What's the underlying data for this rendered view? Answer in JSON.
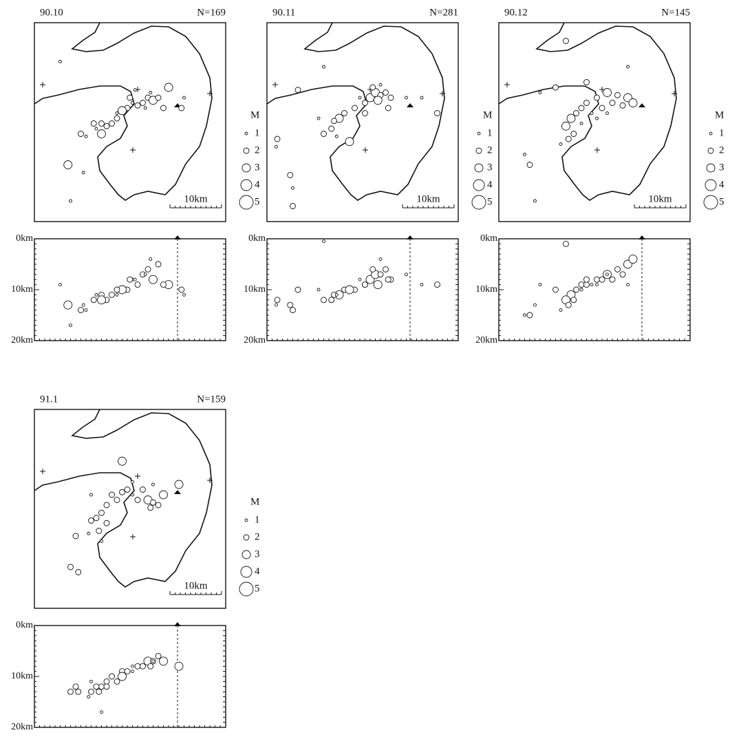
{
  "map_depth_panels": {
    "legend": {
      "title": "M",
      "magnitudes": [
        1,
        2,
        3,
        4,
        5
      ]
    },
    "scale_bar": {
      "value": 10,
      "label": "10km"
    },
    "depth_ticks": [
      {
        "value": 0,
        "label": "0km"
      },
      {
        "value": 10,
        "label": "10km"
      },
      {
        "value": 20,
        "label": "20km"
      }
    ],
    "panels": [
      {
        "title": "90.10",
        "count_label": "N=169",
        "events": [
          [
            21,
            23,
            7,
            2
          ],
          [
            22,
            24,
            6,
            2
          ],
          [
            23,
            23.5,
            8,
            3
          ],
          [
            20,
            22.5,
            9,
            2
          ],
          [
            19,
            23,
            8,
            1
          ],
          [
            24,
            24,
            5,
            2
          ],
          [
            22.5,
            25,
            4,
            1
          ],
          [
            18,
            22,
            10,
            2
          ],
          [
            17,
            21.5,
            10,
            3
          ],
          [
            16,
            21,
            11,
            1
          ],
          [
            13,
            19,
            11,
            2
          ],
          [
            14,
            18.5,
            12,
            2
          ],
          [
            12,
            18,
            11,
            1
          ],
          [
            11.5,
            19,
            12,
            2
          ],
          [
            13,
            17,
            12,
            3
          ],
          [
            15,
            19,
            11,
            2
          ],
          [
            10,
            16.5,
            14,
            1
          ],
          [
            9,
            17,
            14,
            2
          ],
          [
            26,
            26,
            9,
            3
          ],
          [
            28.5,
            22,
            10,
            2
          ],
          [
            6.5,
            11,
            13,
            3
          ],
          [
            9.5,
            9.5,
            13,
            1
          ],
          [
            7,
            4,
            17,
            1
          ],
          [
            5,
            31,
            9,
            1
          ],
          [
            29,
            24,
            11,
            1
          ],
          [
            18.5,
            24,
            8,
            2
          ],
          [
            21.5,
            22,
            7,
            1
          ],
          [
            16,
            20,
            10,
            2
          ],
          [
            25,
            22,
            9,
            2
          ],
          [
            19.5,
            25.5,
            8,
            1
          ]
        ]
      },
      {
        "title": "90.11",
        "count_label": "N=281",
        "events": [
          [
            20,
            24,
            8,
            3
          ],
          [
            21,
            25,
            7,
            3
          ],
          [
            22,
            24.5,
            7,
            2
          ],
          [
            21.5,
            23.5,
            9,
            3
          ],
          [
            23,
            25,
            6,
            2
          ],
          [
            19,
            23,
            9,
            2
          ],
          [
            20.5,
            26,
            6,
            2
          ],
          [
            18,
            24,
            8,
            1
          ],
          [
            24,
            24,
            8,
            2
          ],
          [
            22,
            26.5,
            4,
            1
          ],
          [
            17,
            22,
            10,
            2
          ],
          [
            15,
            21,
            10,
            2
          ],
          [
            14,
            20,
            11,
            3
          ],
          [
            13,
            19.5,
            11,
            2
          ],
          [
            12.5,
            18,
            12,
            2
          ],
          [
            13.5,
            16.5,
            11,
            1
          ],
          [
            16,
            15.5,
            10,
            3
          ],
          [
            11,
            17,
            12,
            2
          ],
          [
            10,
            20,
            10,
            1
          ],
          [
            6,
            25.5,
            10,
            2
          ],
          [
            2,
            16,
            12,
            2
          ],
          [
            1.8,
            14.5,
            13,
            1
          ],
          [
            4.5,
            9,
            13,
            2
          ],
          [
            5,
            6.5,
            14,
            1
          ],
          [
            5,
            3,
            14,
            2
          ],
          [
            30,
            24,
            9,
            1
          ],
          [
            33,
            21,
            9,
            2
          ],
          [
            27,
            24,
            7,
            1
          ],
          [
            23.5,
            22,
            8,
            2
          ],
          [
            11,
            30,
            0.5,
            1
          ],
          [
            19,
            21,
            9,
            2
          ]
        ]
      },
      {
        "title": "90.12",
        "count_label": "N=145",
        "events": [
          [
            14,
            20,
            11,
            3
          ],
          [
            13,
            18.5,
            12,
            3
          ],
          [
            15,
            21,
            10,
            2
          ],
          [
            16,
            22,
            9,
            2
          ],
          [
            14.5,
            17,
            12,
            2
          ],
          [
            13.5,
            16,
            13,
            2
          ],
          [
            17,
            23,
            9,
            2
          ],
          [
            19,
            24,
            8,
            2
          ],
          [
            21,
            25,
            7,
            3
          ],
          [
            23,
            24.5,
            6,
            2
          ],
          [
            25,
            24,
            5,
            3
          ],
          [
            24,
            22.5,
            7,
            2
          ],
          [
            22,
            23,
            8,
            2
          ],
          [
            20,
            22,
            8,
            2
          ],
          [
            18,
            21,
            9,
            1
          ],
          [
            16,
            19,
            10,
            1
          ],
          [
            26,
            23,
            4,
            3
          ],
          [
            12,
            15,
            14,
            1
          ],
          [
            17,
            27,
            8,
            2
          ],
          [
            8,
            25,
            9,
            1
          ],
          [
            5,
            13,
            15,
            1
          ],
          [
            6,
            11,
            15,
            2
          ],
          [
            7,
            4,
            13,
            1
          ],
          [
            13,
            35,
            1,
            2
          ],
          [
            25,
            30,
            9,
            1
          ],
          [
            11,
            26,
            10,
            2
          ],
          [
            21,
            21,
            7,
            1
          ],
          [
            19,
            20,
            9,
            1
          ]
        ]
      },
      {
        "title": "91.1",
        "count_label": "N=159",
        "events": [
          [
            15,
            22,
            10,
            2
          ],
          [
            17,
            22.5,
            9,
            2
          ],
          [
            18,
            23,
            9,
            2
          ],
          [
            19,
            22,
            8,
            1
          ],
          [
            20,
            21,
            8,
            2
          ],
          [
            22,
            21,
            7,
            3
          ],
          [
            23,
            20.5,
            7,
            2
          ],
          [
            24,
            20,
            6,
            2
          ],
          [
            22.5,
            19.5,
            8,
            2
          ],
          [
            21,
            23,
            8,
            2
          ],
          [
            16,
            21,
            11,
            2
          ],
          [
            14,
            20,
            11,
            2
          ],
          [
            13,
            18.5,
            12,
            2
          ],
          [
            12,
            17.5,
            12,
            2
          ],
          [
            11,
            17,
            13,
            2
          ],
          [
            14,
            16.5,
            12,
            2
          ],
          [
            12.5,
            15,
            13,
            2
          ],
          [
            10.5,
            14.5,
            14,
            1
          ],
          [
            8,
            14,
            12,
            2
          ],
          [
            11,
            22,
            11,
            1
          ],
          [
            7,
            8,
            13,
            2
          ],
          [
            8.5,
            7,
            13,
            2
          ],
          [
            17,
            28.5,
            10,
            3
          ],
          [
            28,
            24,
            8,
            3
          ],
          [
            23,
            24,
            7,
            1
          ],
          [
            25,
            22,
            7,
            3
          ],
          [
            19,
            24.5,
            9,
            1
          ],
          [
            13,
            13,
            17,
            1
          ]
        ]
      }
    ]
  }
}
